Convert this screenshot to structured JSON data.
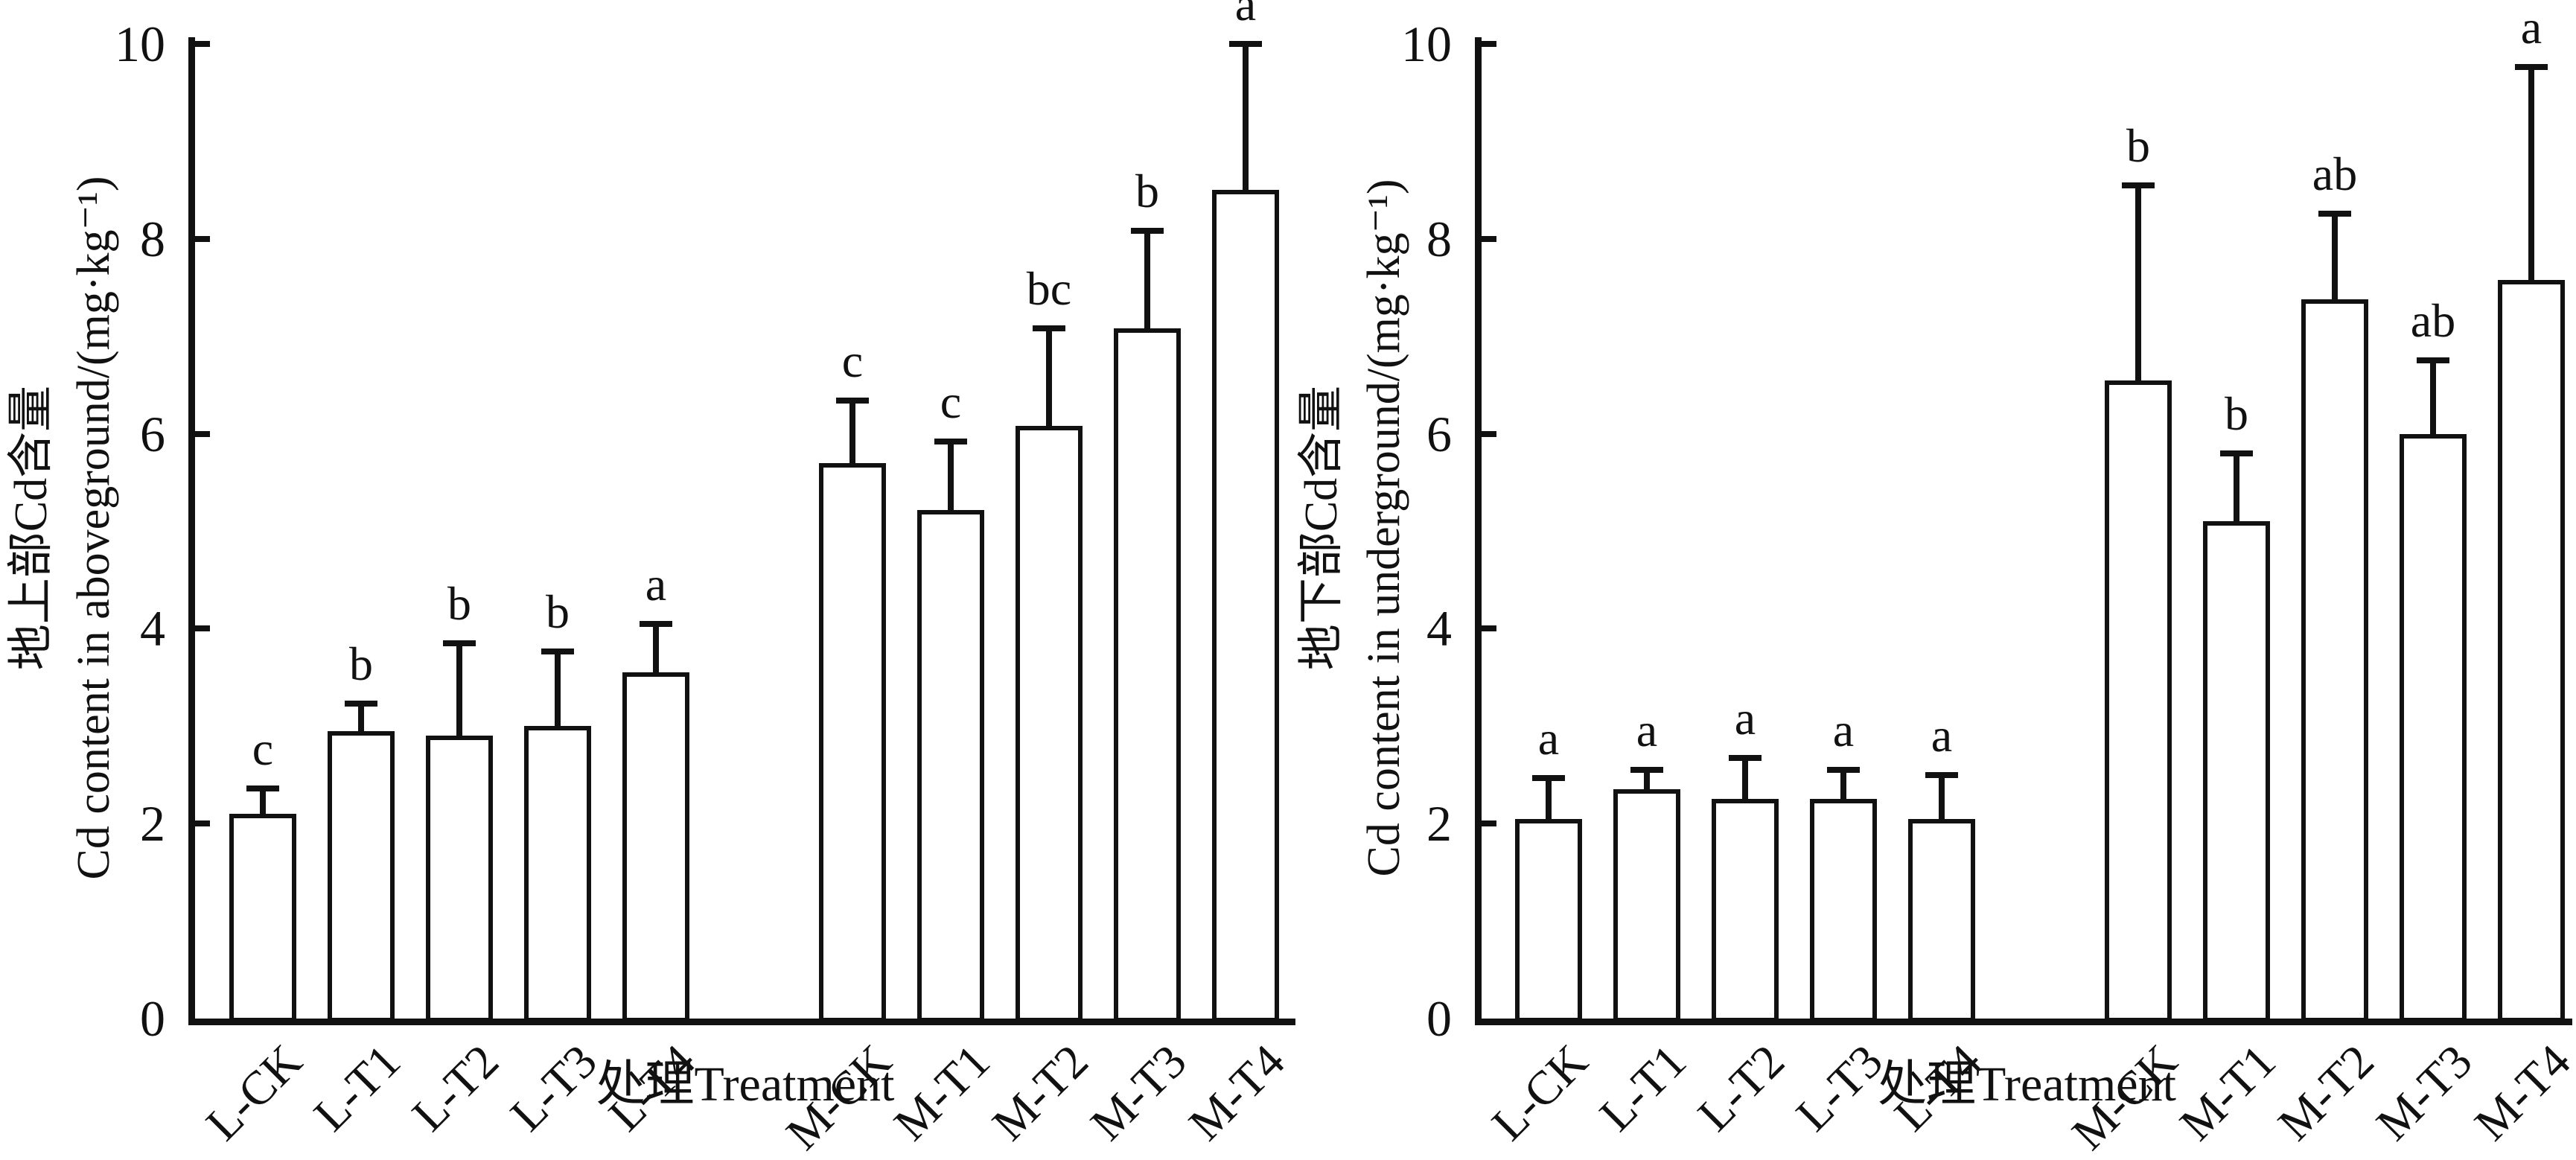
{
  "page": {
    "background": "#ffffff",
    "ink": "#111111",
    "bar_fill": "#ffffff",
    "bar_edge": "#111111"
  },
  "chart_data": [
    {
      "type": "bar",
      "panel": "aboveground",
      "ylabel_cn": "地上部Cd含量",
      "ylabel_en": "Cd content in aboveground/(mg·kg⁻¹)",
      "xlabel": "处理Treatment",
      "categories": [
        "L-CK",
        "L-T1",
        "L-T2",
        "L-T3",
        "L-T4",
        "M-CK",
        "M-T1",
        "M-T2",
        "M-T3",
        "M-T4"
      ],
      "values": [
        2.1,
        2.95,
        2.9,
        3.0,
        3.55,
        5.7,
        5.22,
        6.08,
        7.08,
        8.5
      ],
      "errors": [
        0.26,
        0.28,
        0.95,
        0.77,
        0.5,
        0.64,
        0.7,
        1.0,
        1.0,
        1.5
      ],
      "sig_letters": [
        "c",
        "b",
        "b",
        "b",
        "a",
        "c",
        "c",
        "bc",
        "b",
        "a"
      ],
      "ylim": [
        0,
        10
      ],
      "yticks": [
        0,
        2,
        4,
        6,
        8,
        10
      ],
      "grid": false,
      "legend": "none",
      "group_gap_after": 5
    },
    {
      "type": "bar",
      "panel": "underground",
      "ylabel_cn": "地下部Cd含量",
      "ylabel_en": "Cd content in underground/(mg·kg⁻¹)",
      "xlabel": "处理Treatment",
      "categories": [
        "L-CK",
        "L-T1",
        "L-T2",
        "L-T3",
        "L-T4",
        "M-CK",
        "M-T1",
        "M-T2",
        "M-T3",
        "M-T4"
      ],
      "values": [
        2.05,
        2.35,
        2.25,
        2.25,
        2.05,
        6.55,
        5.1,
        7.38,
        6.0,
        7.58
      ],
      "errors": [
        0.42,
        0.2,
        0.42,
        0.3,
        0.45,
        2.0,
        0.7,
        0.88,
        0.75,
        2.18
      ],
      "sig_letters": [
        "a",
        "a",
        "a",
        "a",
        "a",
        "b",
        "b",
        "ab",
        "ab",
        "a"
      ],
      "ylim": [
        0,
        10
      ],
      "yticks": [
        0,
        2,
        4,
        6,
        8,
        10
      ],
      "grid": false,
      "legend": "none",
      "group_gap_after": 5
    }
  ]
}
